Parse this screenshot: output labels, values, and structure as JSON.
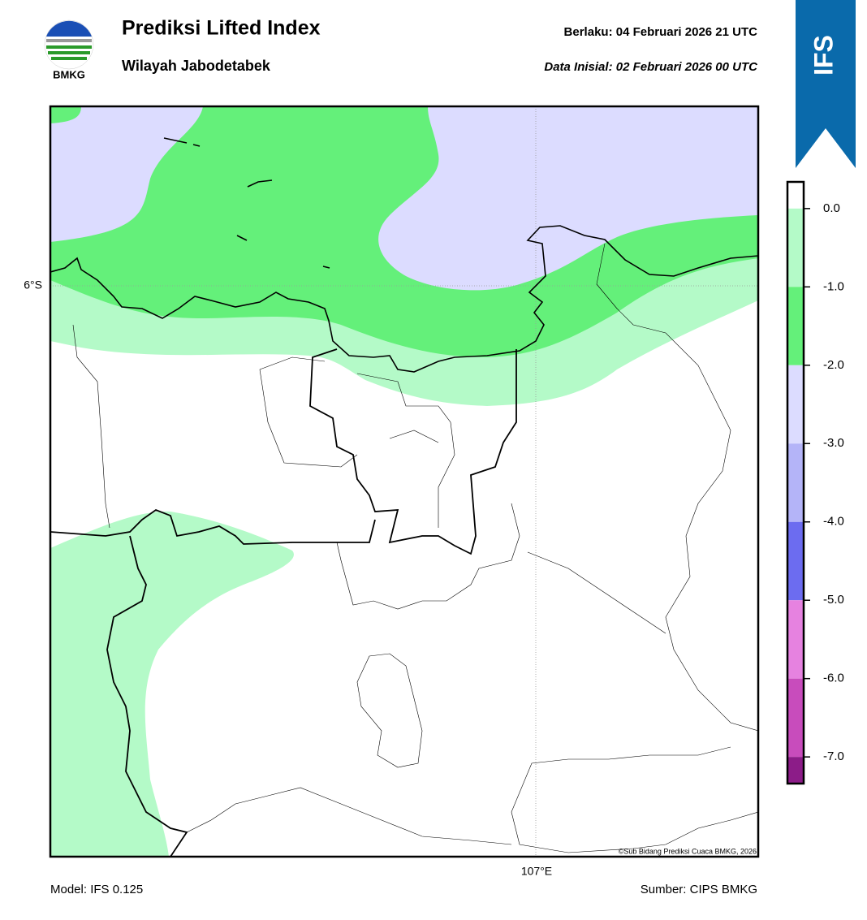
{
  "header": {
    "title": "Prediksi Lifted Index",
    "subtitle": "Wilayah Jabodetabek",
    "valid": "Berlaku:  04 Februari 2026 21 UTC",
    "init": "Data Inisial:  02 Februari 2026 00 UTC",
    "logo_text": "BMKG",
    "badge": "IFS"
  },
  "map": {
    "lat_label": "6°S",
    "lon_label": "107°E",
    "credit": "©Sub Bidang Prediksi Cuaca BMKG, 2026"
  },
  "colorbar": {
    "lim": [
      -7.33,
      0.33
    ],
    "ticks": [
      {
        "value": 0,
        "label": "0.0"
      },
      {
        "value": -1,
        "label": "-1.0"
      },
      {
        "value": -2,
        "label": "-2.0"
      },
      {
        "value": -3,
        "label": "-3.0"
      },
      {
        "value": -4,
        "label": "-4.0"
      },
      {
        "value": -5,
        "label": "-5.0"
      },
      {
        "value": -6,
        "label": "-6.0"
      },
      {
        "value": -7,
        "label": "-7.0"
      }
    ],
    "segments": [
      {
        "from": 0.33,
        "to": 0,
        "color": "#ffffff"
      },
      {
        "from": 0,
        "to": -1,
        "color": "#b4fac8"
      },
      {
        "from": -1,
        "to": -2,
        "color": "#64f07a"
      },
      {
        "from": -2,
        "to": -3,
        "color": "#dcdcff"
      },
      {
        "from": -3,
        "to": -4,
        "color": "#b4b4f8"
      },
      {
        "from": -4,
        "to": -5,
        "color": "#6c6cf0"
      },
      {
        "from": -5,
        "to": -6,
        "color": "#e682e0"
      },
      {
        "from": -6,
        "to": -7,
        "color": "#c84cbc"
      },
      {
        "from": -7,
        "to": -7.33,
        "color": "#8c1c88"
      }
    ]
  },
  "footer": {
    "model": "Model: IFS 0.125",
    "source": "Sumber: CIPS BMKG"
  }
}
